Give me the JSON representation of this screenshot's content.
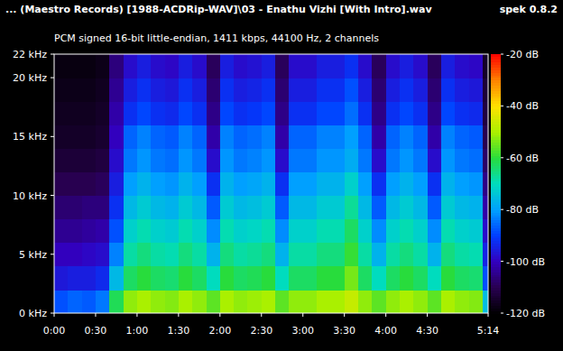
{
  "chart_data": {
    "type": "heatmap",
    "title": "... (Maestro Records) [1988-ACDRip-WAV]\\03 - Enathu Vizhi [With Intro].wav",
    "subtitle": "PCM signed 16-bit little-endian, 1411 kbps, 44100 Hz, 2 channels",
    "annotations": [
      "spek 0.8.2"
    ],
    "x": [
      0,
      10,
      20,
      30,
      40,
      50,
      60,
      70,
      80,
      90,
      100,
      110,
      120,
      130,
      140,
      150,
      160,
      170,
      180,
      190,
      200,
      210,
      220,
      230,
      240,
      250,
      260,
      270,
      280,
      290,
      300,
      310
    ],
    "y": [
      0,
      2,
      4,
      6,
      8,
      10,
      12,
      14,
      16,
      18,
      20
    ],
    "xlim": [
      0,
      314
    ],
    "ylim": [
      0,
      22
    ],
    "xticks": [
      {
        "value": 0,
        "label": "0:00"
      },
      {
        "value": 30,
        "label": "0:30"
      },
      {
        "value": 60,
        "label": "1:00"
      },
      {
        "value": 90,
        "label": "1:30"
      },
      {
        "value": 120,
        "label": "2:00"
      },
      {
        "value": 150,
        "label": "2:30"
      },
      {
        "value": 180,
        "label": "3:00"
      },
      {
        "value": 210,
        "label": "3:30"
      },
      {
        "value": 240,
        "label": "4:00"
      },
      {
        "value": 270,
        "label": "4:30"
      },
      {
        "value": 314,
        "label": "5:14"
      }
    ],
    "yticks": [
      {
        "value": 0,
        "label": "0 kHz"
      },
      {
        "value": 5,
        "label": "5 kHz"
      },
      {
        "value": 10,
        "label": "10 kHz"
      },
      {
        "value": 15,
        "label": "15 kHz"
      },
      {
        "value": 20,
        "label": "20 kHz"
      },
      {
        "value": 22,
        "label": "22 kHz"
      }
    ],
    "cells": [
      [
        -88,
        -86,
        -87,
        -84,
        -62,
        -52,
        -50,
        -52,
        -53,
        -50,
        -52,
        -56,
        -50,
        -52,
        -51,
        -50,
        -56,
        -52,
        -52,
        -50,
        -50,
        -47,
        -52,
        -56,
        -52,
        -50,
        -52,
        -56,
        -50,
        -52,
        -53,
        -75
      ],
      [
        -96,
        -95,
        -95,
        -93,
        -76,
        -63,
        -60,
        -63,
        -64,
        -60,
        -63,
        -70,
        -60,
        -63,
        -62,
        -60,
        -70,
        -63,
        -63,
        -60,
        -60,
        -54,
        -63,
        -70,
        -63,
        -60,
        -63,
        -70,
        -60,
        -63,
        -64,
        -88
      ],
      [
        -100,
        -100,
        -99,
        -98,
        -83,
        -68,
        -65,
        -68,
        -69,
        -65,
        -68,
        -77,
        -65,
        -68,
        -67,
        -65,
        -77,
        -68,
        -68,
        -65,
        -65,
        -59,
        -68,
        -77,
        -68,
        -65,
        -68,
        -77,
        -65,
        -68,
        -69,
        -94
      ],
      [
        -104,
        -104,
        -103,
        -102,
        -88,
        -72,
        -69,
        -72,
        -73,
        -69,
        -72,
        -82,
        -69,
        -72,
        -71,
        -69,
        -82,
        -72,
        -72,
        -69,
        -69,
        -63,
        -72,
        -82,
        -72,
        -69,
        -72,
        -82,
        -69,
        -72,
        -73,
        -98
      ],
      [
        -107,
        -107,
        -106,
        -106,
        -92,
        -76,
        -73,
        -76,
        -77,
        -73,
        -76,
        -87,
        -73,
        -76,
        -75,
        -73,
        -87,
        -76,
        -76,
        -73,
        -73,
        -67,
        -76,
        -87,
        -76,
        -73,
        -76,
        -87,
        -73,
        -76,
        -77,
        -102
      ],
      [
        -110,
        -110,
        -110,
        -109,
        -95,
        -80,
        -77,
        -80,
        -81,
        -77,
        -80,
        -92,
        -77,
        -80,
        -79,
        -77,
        -92,
        -80,
        -80,
        -77,
        -77,
        -72,
        -80,
        -92,
        -80,
        -77,
        -80,
        -92,
        -77,
        -80,
        -81,
        -105
      ],
      [
        -113,
        -113,
        -113,
        -112,
        -98,
        -84,
        -81,
        -84,
        -85,
        -81,
        -84,
        -98,
        -81,
        -84,
        -83,
        -81,
        -98,
        -84,
        -84,
        -81,
        -81,
        -78,
        -84,
        -98,
        -84,
        -81,
        -84,
        -98,
        -81,
        -84,
        -85,
        -108
      ],
      [
        -115,
        -115,
        -115,
        -114,
        -100,
        -86,
        -83,
        -86,
        -87,
        -83,
        -86,
        -102,
        -83,
        -86,
        -85,
        -83,
        -102,
        -86,
        -86,
        -83,
        -83,
        -80,
        -86,
        -102,
        -86,
        -83,
        -86,
        -102,
        -83,
        -86,
        -87,
        -110
      ],
      [
        -116,
        -116,
        -116,
        -115,
        -102,
        -92,
        -89,
        -92,
        -93,
        -89,
        -92,
        -105,
        -89,
        -92,
        -91,
        -89,
        -105,
        -92,
        -92,
        -89,
        -89,
        -85,
        -92,
        -105,
        -92,
        -89,
        -92,
        -105,
        -89,
        -92,
        -93,
        -112
      ],
      [
        -117,
        -117,
        -117,
        -116,
        -104,
        -95,
        -92,
        -95,
        -96,
        -92,
        -95,
        -107,
        -92,
        -95,
        -94,
        -92,
        -107,
        -95,
        -95,
        -92,
        -92,
        -88,
        -95,
        -107,
        -95,
        -92,
        -95,
        -107,
        -92,
        -95,
        -96,
        -113
      ],
      [
        -118,
        -118,
        -118,
        -117,
        -106,
        -98,
        -95,
        -98,
        -99,
        -95,
        -98,
        -109,
        -95,
        -98,
        -97,
        -95,
        -109,
        -98,
        -98,
        -95,
        -95,
        -92,
        -98,
        -109,
        -98,
        -95,
        -98,
        -109,
        -95,
        -98,
        -99,
        -115
      ]
    ],
    "color_range": [
      -120,
      -20
    ],
    "color_ticks": [
      {
        "value": -20,
        "label": "-20 dB"
      },
      {
        "value": -40,
        "label": "-40 dB"
      },
      {
        "value": -60,
        "label": "-60 dB"
      },
      {
        "value": -80,
        "label": "-80 dB"
      },
      {
        "value": -100,
        "label": "-100 dB"
      },
      {
        "value": -120,
        "label": "-120 dB"
      }
    ]
  }
}
